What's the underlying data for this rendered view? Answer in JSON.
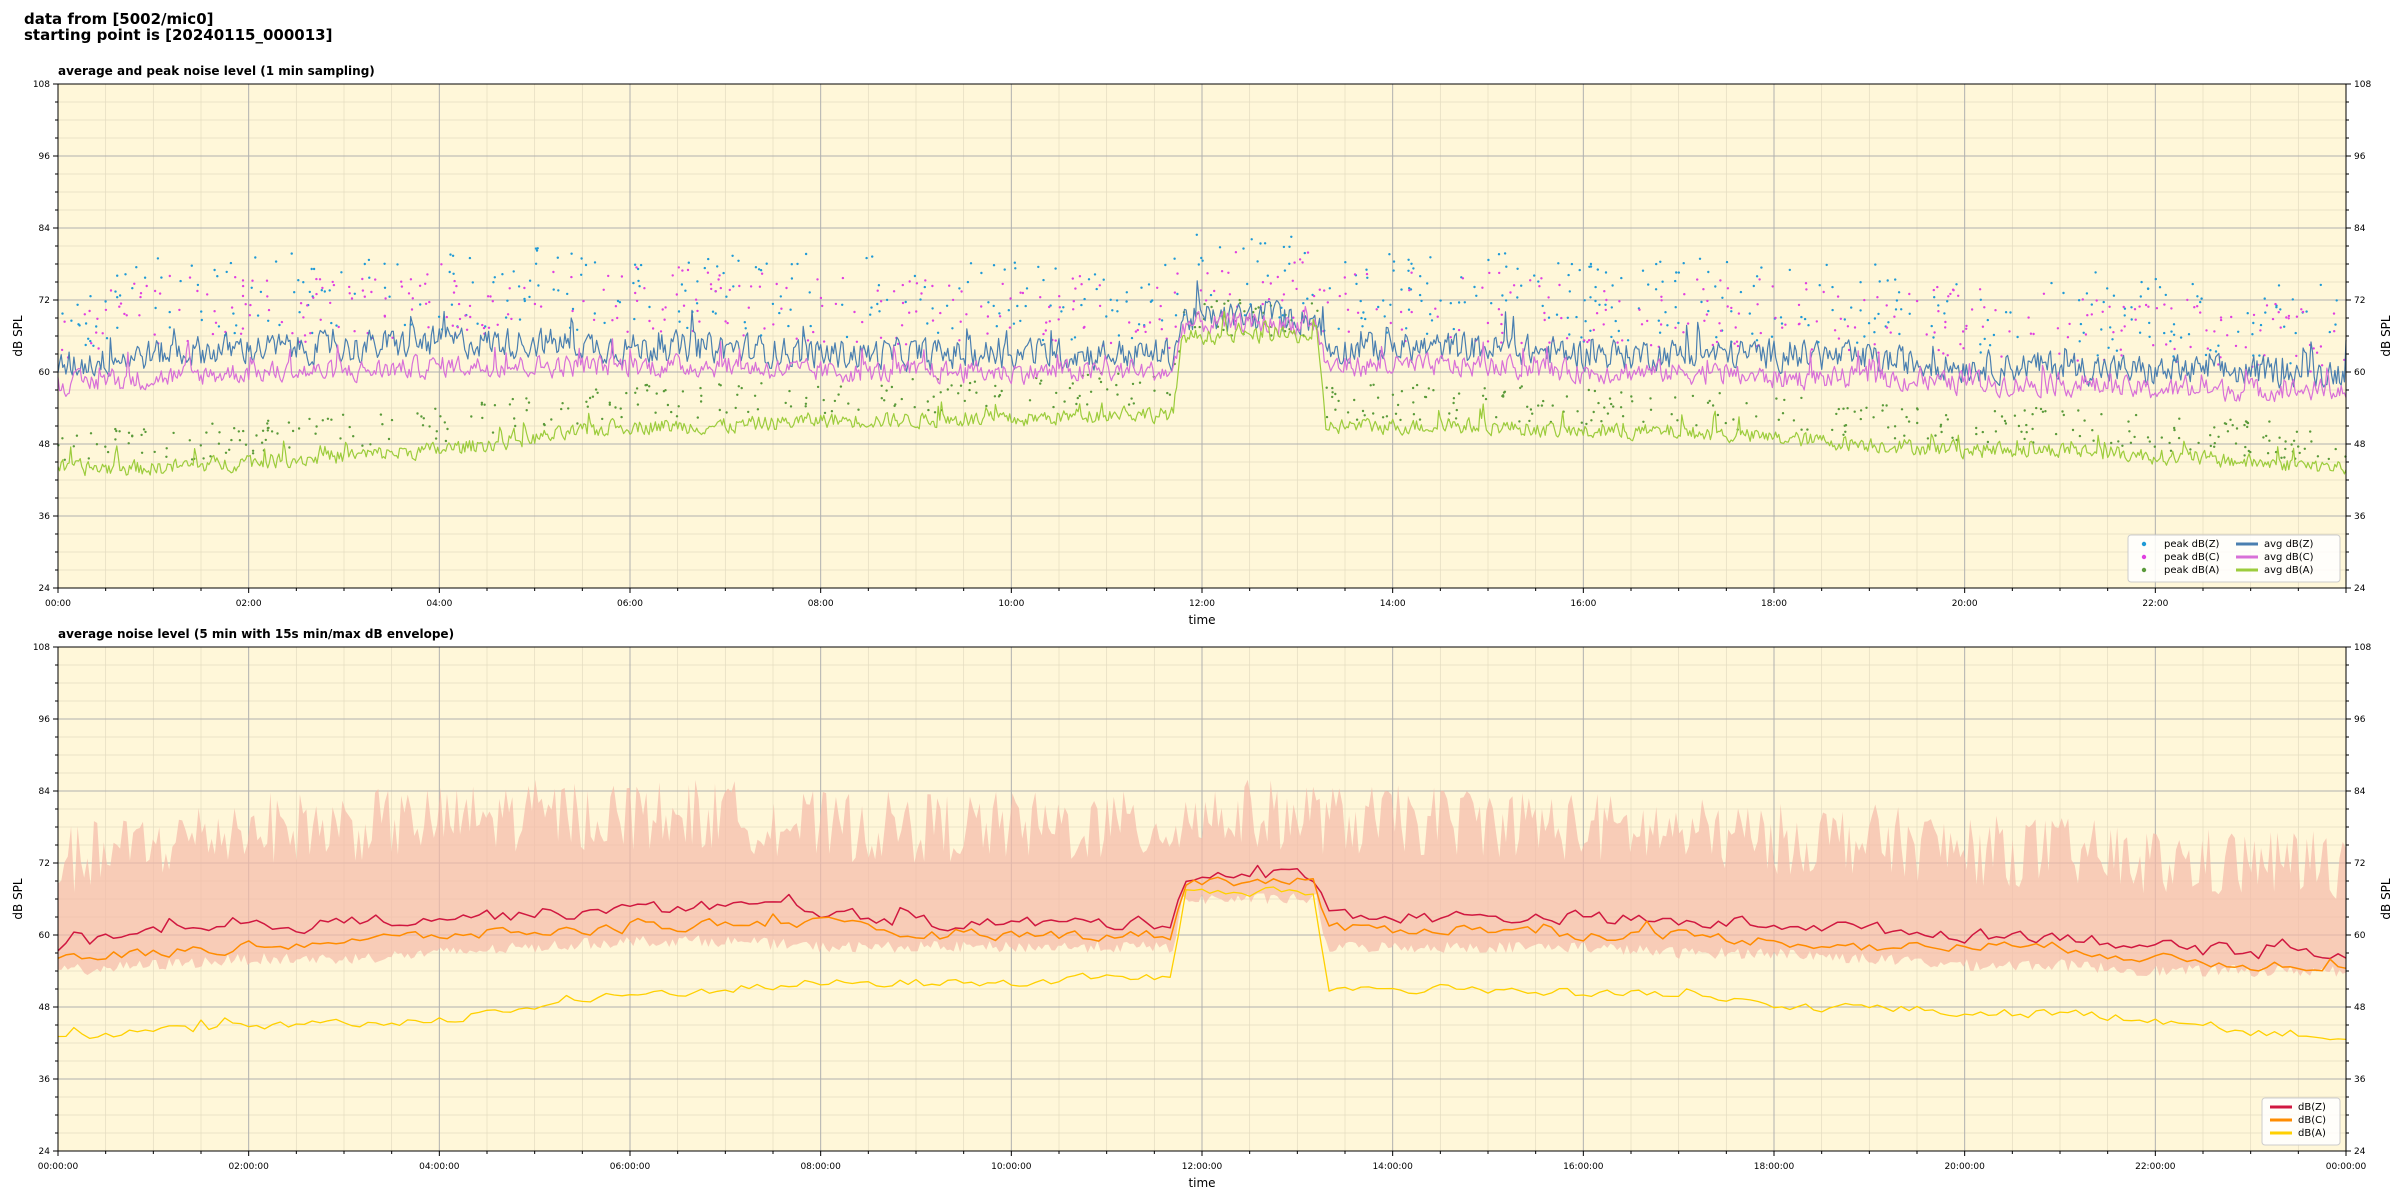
{
  "header": {
    "line1": "data from [5002/mic0]",
    "line2": "starting point is [20240115_000013]"
  },
  "colors": {
    "plot_bg": "#fff7d9",
    "peak_z": "#1f9ad6",
    "peak_c": "#e040e0",
    "peak_a": "#5a9a3a",
    "avg_z": "#4a7fb0",
    "avg_c": "#d870d8",
    "avg_a": "#9ccc3c",
    "line_z": "#d01840",
    "line_c": "#ff8c00",
    "line_a": "#ffd000",
    "envelope": "#f5b9a8"
  },
  "chart_data": [
    {
      "type": "line",
      "title": "average and peak noise level (1 min sampling)",
      "xlabel": "time",
      "ylabel": "dB SPL",
      "ylim": [
        24,
        108
      ],
      "yticks": [
        "24",
        "36",
        "48",
        "60",
        "72",
        "84",
        "96",
        "108"
      ],
      "xlim_hours": [
        0,
        24
      ],
      "xticks": [
        "00:00",
        "02:00",
        "04:00",
        "06:00",
        "08:00",
        "10:00",
        "12:00",
        "14:00",
        "16:00",
        "18:00",
        "20:00",
        "22:00"
      ],
      "grid": true,
      "legend_position": "lower-right",
      "legend": [
        {
          "label": "peak dB(Z)",
          "kind": "dot",
          "color_key": "peak_z"
        },
        {
          "label": "peak dB(C)",
          "kind": "dot",
          "color_key": "peak_c"
        },
        {
          "label": "peak dB(A)",
          "kind": "dot",
          "color_key": "peak_a"
        },
        {
          "label": "avg dB(Z)",
          "kind": "line",
          "color_key": "avg_z"
        },
        {
          "label": "avg dB(C)",
          "kind": "line",
          "color_key": "avg_c"
        },
        {
          "label": "avg dB(A)",
          "kind": "line",
          "color_key": "avg_a"
        }
      ],
      "x_hours": [
        0,
        1,
        2,
        3,
        4,
        5,
        6,
        7,
        8,
        9,
        10,
        11,
        11.7,
        11.8,
        13.2,
        13.3,
        14,
        15,
        16,
        17,
        18,
        19,
        20,
        21,
        22,
        23,
        24
      ],
      "series": [
        {
          "name": "avg dB(Z)",
          "role": "avg",
          "color_key": "avg_z",
          "width": 1.2,
          "values": [
            61,
            63,
            64,
            64,
            65,
            65,
            64,
            64,
            63,
            63,
            63,
            63,
            63,
            69,
            69,
            64,
            64,
            64,
            63,
            63,
            63,
            62,
            61,
            61,
            60,
            60,
            60
          ],
          "amp": 3.5
        },
        {
          "name": "avg dB(C)",
          "role": "avg",
          "color_key": "avg_c",
          "width": 1.2,
          "values": [
            58,
            59,
            60,
            60,
            61,
            61,
            61,
            61,
            60,
            60,
            60,
            60,
            60,
            68,
            68,
            61,
            61,
            61,
            60,
            60,
            59,
            59,
            58,
            58,
            57,
            57,
            57
          ],
          "amp": 2.5
        },
        {
          "name": "avg dB(A)",
          "role": "avg",
          "color_key": "avg_a",
          "width": 1.2,
          "values": [
            44,
            44,
            45,
            46,
            47,
            49,
            51,
            51,
            52,
            52,
            52,
            53,
            53,
            66,
            66,
            51,
            51,
            51,
            50,
            50,
            49,
            48,
            47,
            47,
            46,
            45,
            44
          ],
          "amp": 1.8
        },
        {
          "name": "peak dB(Z)",
          "role": "peak",
          "color_key": "peak_z",
          "values": [
            70,
            72,
            73,
            73,
            74,
            74,
            74,
            73,
            73,
            72,
            72,
            72,
            72,
            76,
            76,
            73,
            73,
            73,
            72,
            72,
            72,
            71,
            70,
            70,
            69,
            68,
            68
          ],
          "amp": 7
        },
        {
          "name": "peak dB(C)",
          "role": "peak",
          "color_key": "peak_c",
          "values": [
            68,
            70,
            71,
            71,
            72,
            72,
            72,
            71,
            71,
            70,
            70,
            70,
            70,
            74,
            74,
            71,
            71,
            71,
            70,
            70,
            70,
            69,
            68,
            68,
            67,
            66,
            66
          ],
          "amp": 6
        },
        {
          "name": "peak dB(A)",
          "role": "peak",
          "color_key": "peak_a",
          "values": [
            48,
            48,
            49,
            50,
            51,
            53,
            55,
            55,
            56,
            56,
            56,
            57,
            57,
            69,
            69,
            55,
            55,
            55,
            54,
            54,
            53,
            52,
            51,
            51,
            50,
            49,
            48
          ],
          "amp": 3
        }
      ]
    },
    {
      "type": "line",
      "title": "average noise level (5 min with 15s min/max dB envelope)",
      "xlabel": "time",
      "ylabel": "dB SPL",
      "ylim": [
        24,
        108
      ],
      "yticks": [
        "24",
        "36",
        "48",
        "60",
        "72",
        "84",
        "96",
        "108"
      ],
      "xlim_hours": [
        0,
        24
      ],
      "xticks": [
        "00:00:00",
        "02:00:00",
        "04:00:00",
        "06:00:00",
        "08:00:00",
        "10:00:00",
        "12:00:00",
        "14:00:00",
        "16:00:00",
        "18:00:00",
        "20:00:00",
        "22:00:00",
        "00:00:00"
      ],
      "grid": true,
      "legend_position": "lower-right",
      "legend": [
        {
          "label": "dB(Z)",
          "kind": "line",
          "color_key": "line_z"
        },
        {
          "label": "dB(C)",
          "kind": "line",
          "color_key": "line_c"
        },
        {
          "label": "dB(A)",
          "kind": "line",
          "color_key": "line_a"
        }
      ],
      "x_hours": [
        0,
        1,
        2,
        3,
        4,
        5,
        6,
        7,
        8,
        9,
        10,
        11,
        11.7,
        11.8,
        13.2,
        13.3,
        14,
        15,
        16,
        17,
        18,
        19,
        20,
        21,
        22,
        23,
        24
      ],
      "envelope": {
        "color_key": "envelope",
        "lower": [
          54,
          55,
          56,
          56,
          57,
          58,
          59,
          59,
          58,
          58,
          58,
          58,
          58,
          66,
          66,
          58,
          58,
          58,
          58,
          57,
          57,
          56,
          55,
          55,
          54,
          54,
          54
        ],
        "upper": [
          72,
          75,
          78,
          78,
          79,
          80,
          80,
          80,
          78,
          78,
          78,
          78,
          78,
          80,
          80,
          79,
          79,
          79,
          78,
          77,
          76,
          76,
          74,
          74,
          72,
          72,
          72
        ],
        "amp": 6
      },
      "series": [
        {
          "name": "dB(Z)",
          "color_key": "line_z",
          "width": 1.5,
          "values": [
            58,
            60,
            61,
            62,
            63,
            63.5,
            64,
            65,
            64,
            62,
            62,
            62,
            62,
            70,
            70,
            64,
            63,
            63,
            63,
            62,
            62,
            61,
            60,
            60,
            58,
            57,
            57
          ],
          "amp": 1.6
        },
        {
          "name": "dB(C)",
          "color_key": "line_c",
          "width": 1.5,
          "values": [
            56,
            57,
            58,
            59,
            60,
            60.5,
            61,
            62,
            62,
            60,
            60,
            60,
            60,
            69,
            69,
            61,
            61,
            61,
            60,
            60,
            59,
            58,
            58,
            58,
            56,
            55,
            55
          ],
          "amp": 1.3
        },
        {
          "name": "dB(A)",
          "color_key": "line_a",
          "width": 1.3,
          "values": [
            43,
            44,
            44.5,
            45,
            46,
            48,
            50,
            51,
            52,
            52,
            52,
            53,
            53,
            67,
            67,
            51,
            51,
            51,
            50,
            50,
            48,
            48,
            47,
            47,
            46,
            44,
            43
          ],
          "amp": 1.1
        }
      ]
    }
  ]
}
